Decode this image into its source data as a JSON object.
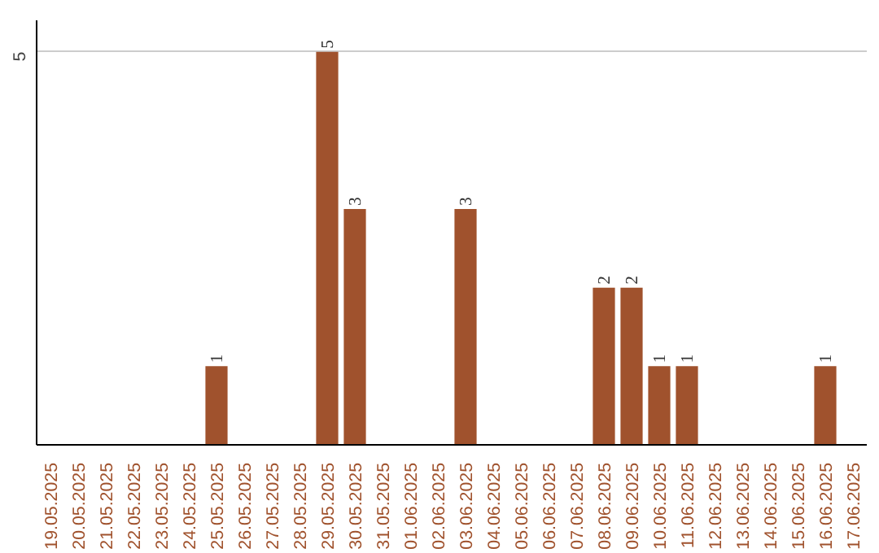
{
  "chart_data": {
    "type": "bar",
    "categories": [
      "19.05.2025",
      "20.05.2025",
      "21.05.2025",
      "22.05.2025",
      "23.05.2025",
      "24.05.2025",
      "25.05.2025",
      "26.05.2025",
      "27.05.2025",
      "28.05.2025",
      "29.05.2025",
      "30.05.2025",
      "31.05.2025",
      "01.06.2025",
      "02.06.2025",
      "03.06.2025",
      "04.06.2025",
      "05.06.2025",
      "06.06.2025",
      "07.06.2025",
      "08.06.2025",
      "09.06.2025",
      "10.06.2025",
      "11.06.2025",
      "12.06.2025",
      "13.06.2025",
      "14.06.2025",
      "15.06.2025",
      "16.06.2025",
      "17.06.2025"
    ],
    "values": [
      0,
      0,
      0,
      0,
      0,
      0,
      1,
      0,
      0,
      0,
      5,
      3,
      0,
      0,
      0,
      3,
      0,
      0,
      0,
      0,
      2,
      2,
      1,
      1,
      0,
      0,
      0,
      0,
      1,
      0
    ],
    "value_labels": [
      null,
      null,
      null,
      null,
      null,
      null,
      "1",
      null,
      null,
      null,
      "5",
      "3",
      null,
      null,
      null,
      "3",
      null,
      null,
      null,
      null,
      "2",
      "2",
      "1",
      "1",
      null,
      null,
      null,
      null,
      "1",
      null
    ],
    "color": "#a0522d",
    "ylim": [
      0,
      5.4
    ],
    "yticks": [
      5
    ],
    "grid": "y"
  }
}
